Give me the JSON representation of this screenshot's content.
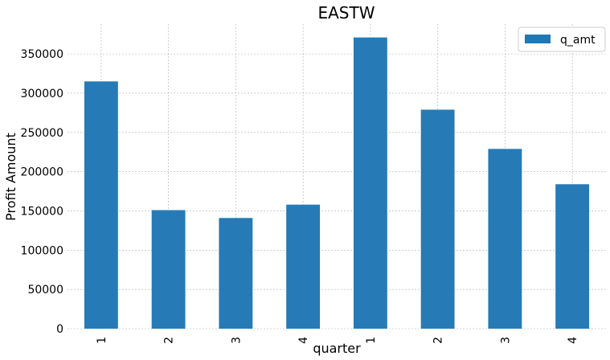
{
  "chart_data": {
    "type": "bar",
    "title": "EASTW",
    "xlabel": "quarter",
    "ylabel": "Profit Amount",
    "categories": [
      "1",
      "2",
      "3",
      "4",
      "1",
      "2",
      "3",
      "4"
    ],
    "series": [
      {
        "name": "q_amt",
        "values": [
          315000,
          151000,
          141000,
          158000,
          371000,
          279000,
          229000,
          184000
        ]
      }
    ],
    "ylim": [
      0,
      388000
    ],
    "yticks": [
      0,
      50000,
      100000,
      150000,
      200000,
      250000,
      300000,
      350000
    ],
    "ytick_labels": [
      "0",
      "50000",
      "100000",
      "150000",
      "200000",
      "250000",
      "300000",
      "350000"
    ],
    "grid": true,
    "legend_position": "top-right",
    "colors": {
      "bar": "#1f77b4",
      "grid": "#b0b0b0"
    }
  }
}
